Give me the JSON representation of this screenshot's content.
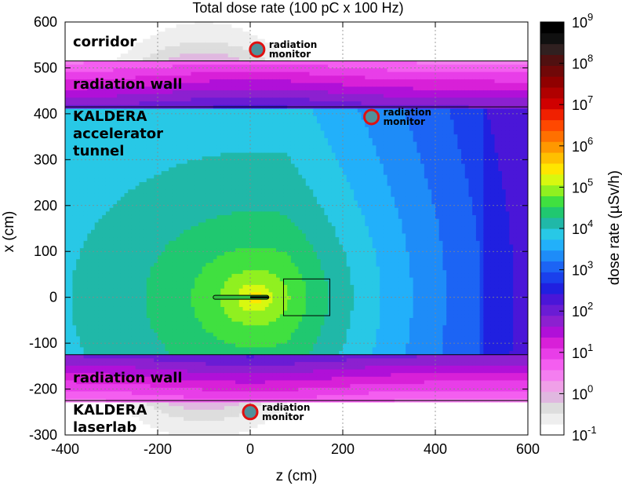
{
  "chart_data": {
    "type": "heatmap",
    "title": "Total dose rate (100 pC x 100 Hz)",
    "xlabel": "z (cm)",
    "ylabel": "x (cm)",
    "xlim": [
      -400,
      600
    ],
    "ylim": [
      -300,
      600
    ],
    "x_ticks": [
      "-400",
      "-200",
      "0",
      "200",
      "400",
      "600"
    ],
    "y_ticks": [
      "-300",
      "-200",
      "-100",
      "0",
      "100",
      "200",
      "300",
      "400",
      "500",
      "600"
    ],
    "x_tick_values": [
      -400,
      -200,
      0,
      200,
      400,
      600
    ],
    "y_tick_values": [
      -300,
      -200,
      -100,
      0,
      100,
      200,
      300,
      400,
      500,
      600
    ],
    "grid": true,
    "colorbar": {
      "label": "dose rate (µSv/h)",
      "scale": "log",
      "range_exponents": [
        -1,
        9
      ],
      "ticks": [
        {
          "base": "10",
          "exp": "-1",
          "value": -1
        },
        {
          "base": "10",
          "exp": "0",
          "value": 0
        },
        {
          "base": "10",
          "exp": "1",
          "value": 1
        },
        {
          "base": "10",
          "exp": "2",
          "value": 2
        },
        {
          "base": "10",
          "exp": "3",
          "value": 3
        },
        {
          "base": "10",
          "exp": "4",
          "value": 4
        },
        {
          "base": "10",
          "exp": "5",
          "value": 5
        },
        {
          "base": "10",
          "exp": "6",
          "value": 6
        },
        {
          "base": "10",
          "exp": "7",
          "value": 7
        },
        {
          "base": "10",
          "exp": "8",
          "value": 8
        },
        {
          "base": "10",
          "exp": "9",
          "value": 9
        }
      ],
      "colors": [
        "#ffffff",
        "#eeeeee",
        "#dddddd",
        "#e0b8e0",
        "#f0a0e8",
        "#f47ef0",
        "#f45ef0",
        "#e83ee8",
        "#d820d8",
        "#b010d8",
        "#8c20d0",
        "#6a1cd4",
        "#4a16d8",
        "#2020e0",
        "#1a40ec",
        "#1c64f4",
        "#1e8cf8",
        "#22b0fa",
        "#28c8e6",
        "#20b8a8",
        "#20c870",
        "#40e040",
        "#90f020",
        "#d8f810",
        "#ffe600",
        "#ffc000",
        "#ff9800",
        "#ff7000",
        "#ff4800",
        "#f02000",
        "#d00000",
        "#b00000",
        "#900000",
        "#700808",
        "#501010",
        "#302020",
        "#101010",
        "#000000"
      ]
    },
    "regions": [
      {
        "label": "corridor",
        "lines": [
          "corridor"
        ],
        "x_range": [
          515,
          600
        ]
      },
      {
        "label": "radiation wall",
        "lines": [
          "radiation wall"
        ],
        "x_range": [
          415,
          515
        ]
      },
      {
        "label": "KALDERA accelerator tunnel",
        "lines": [
          "KALDERA",
          "accelerator",
          "tunnel"
        ],
        "x_range": [
          -125,
          415
        ]
      },
      {
        "label": "radiation wall",
        "lines": [
          "radiation wall"
        ],
        "x_range": [
          -225,
          -125
        ]
      },
      {
        "label": "KALDERA laserlab",
        "lines": [
          "KALDERA",
          "laserlab"
        ],
        "x_range": [
          -300,
          -225
        ]
      }
    ],
    "boundaries_x": [
      515,
      415,
      -125,
      -225
    ],
    "monitors": [
      {
        "lines": [
          "radiation",
          "monitor"
        ],
        "z": 15,
        "x": 540
      },
      {
        "lines": [
          "radiation",
          "monitor"
        ],
        "z": 262,
        "x": 393
      },
      {
        "lines": [
          "radiation",
          "monitor"
        ],
        "z": 0,
        "x": -250
      }
    ],
    "beamline": {
      "z": [
        -80,
        40
      ],
      "x": 0
    },
    "target_box": {
      "z": [
        72,
        172
      ],
      "x": [
        -40,
        40
      ]
    },
    "dose_levels": {
      "corridor_exp": -1,
      "wall_outer_exp": 0.5,
      "wall_inner_exp": 1.9,
      "tunnel_source_exp": 5.6,
      "tunnel_far_exp": 1.8
    }
  }
}
